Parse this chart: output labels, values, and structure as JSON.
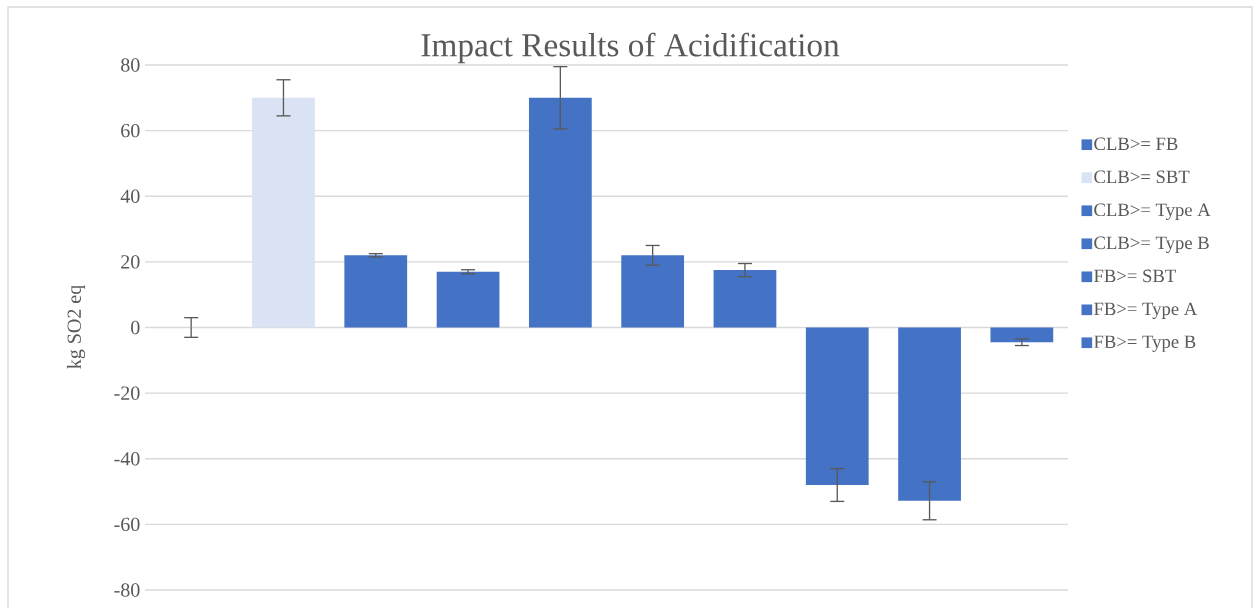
{
  "chart_data": {
    "type": "bar",
    "title": "Impact Results of Acidification",
    "ylabel": "kg SO2 eq",
    "categories": [
      null,
      null,
      null,
      null,
      null,
      null,
      null,
      null,
      null,
      null
    ],
    "series": [
      {
        "name": "CLB>= FB",
        "color": "#4472c4",
        "values": [
          0,
          null,
          null,
          null,
          null,
          null,
          null,
          null,
          null,
          null
        ],
        "errors": [
          3,
          null,
          null,
          null,
          null,
          null,
          null,
          null,
          null,
          null
        ]
      },
      {
        "name": "CLB>= SBT",
        "color": "#dae3f3",
        "values": [
          null,
          70,
          null,
          null,
          null,
          null,
          null,
          null,
          null,
          null
        ],
        "errors": [
          null,
          5.5,
          null,
          null,
          null,
          null,
          null,
          null,
          null,
          null
        ]
      },
      {
        "name": "CLB>= Type A",
        "color": "#4472c4",
        "values": [
          null,
          null,
          22,
          null,
          null,
          null,
          null,
          null,
          null,
          null
        ],
        "errors": [
          null,
          null,
          0.5,
          null,
          null,
          null,
          null,
          null,
          null,
          null
        ]
      },
      {
        "name": "CLB>= Type B",
        "color": "#4472c4",
        "values": [
          null,
          null,
          null,
          17,
          null,
          null,
          null,
          null,
          null,
          null
        ],
        "errors": [
          null,
          null,
          null,
          0.6,
          null,
          null,
          null,
          null,
          null,
          null
        ]
      },
      {
        "name": "FB>= SBT",
        "color": "#4472c4",
        "values": [
          null,
          null,
          null,
          null,
          70,
          null,
          null,
          null,
          null,
          null
        ],
        "errors": [
          null,
          null,
          null,
          null,
          9.5,
          null,
          null,
          null,
          null,
          null
        ]
      },
      {
        "name": "FB>= Type A",
        "color": "#4472c4",
        "values": [
          null,
          null,
          null,
          null,
          null,
          22,
          null,
          null,
          null,
          null
        ],
        "errors": [
          null,
          null,
          null,
          null,
          null,
          3,
          null,
          null,
          null,
          null
        ]
      },
      {
        "name": "FB>= Type B",
        "color": "#4472c4",
        "values": [
          null,
          null,
          null,
          null,
          null,
          null,
          17.5,
          null,
          null,
          null
        ],
        "errors": [
          null,
          null,
          null,
          null,
          null,
          null,
          2,
          null,
          null,
          null
        ]
      },
      {
        "color": "#4472c4",
        "values": [
          null,
          null,
          null,
          null,
          null,
          null,
          null,
          -48,
          null,
          null
        ],
        "errors": [
          null,
          null,
          null,
          null,
          null,
          null,
          null,
          5,
          null,
          null
        ]
      },
      {
        "color": "#4472c4",
        "values": [
          null,
          null,
          null,
          null,
          null,
          null,
          null,
          null,
          -52.8,
          null
        ],
        "errors": [
          null,
          null,
          null,
          null,
          null,
          null,
          null,
          null,
          5.8,
          null
        ]
      },
      {
        "color": "#4472c4",
        "values": [
          null,
          null,
          null,
          null,
          null,
          null,
          null,
          null,
          null,
          -4.5
        ],
        "errors": [
          null,
          null,
          null,
          null,
          null,
          null,
          null,
          null,
          null,
          1
        ]
      }
    ],
    "ylim": [
      -80,
      80
    ],
    "yticks": [
      -80,
      -60,
      -40,
      -20,
      0,
      20,
      40,
      60,
      80
    ],
    "grid": "y",
    "legend": "right",
    "tick_labels": "y"
  }
}
